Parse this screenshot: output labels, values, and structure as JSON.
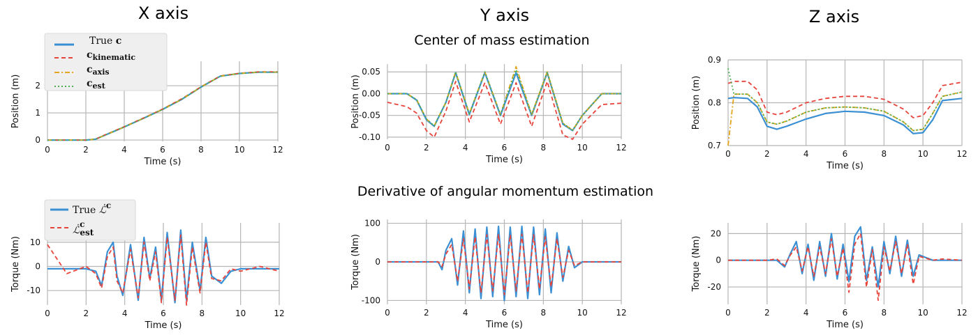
{
  "titles": {
    "col_x": "X axis",
    "col_y": "Y axis",
    "col_z": "Z axis",
    "row_com": "Center of mass estimation",
    "row_dl": "Derivative of angular momentum estimation"
  },
  "colors": {
    "true": "#3b8fd3",
    "kinematic": "#e8433a",
    "axis": "#e2a51c",
    "est": "#4caf50",
    "grid": "#b5b5b5"
  },
  "legends": {
    "com": [
      {
        "label": "True c",
        "color": "#3b8fd3",
        "dash": "solid"
      },
      {
        "label": "c_kinematic",
        "color": "#e8433a",
        "dash": "dashed"
      },
      {
        "label": "c_axis",
        "color": "#e2a51c",
        "dash": "dashdot"
      },
      {
        "label": "c_est",
        "color": "#4caf50",
        "dash": "dotted"
      }
    ],
    "dl": [
      {
        "label": "True L̇c",
        "color": "#3b8fd3",
        "dash": "solid"
      },
      {
        "label": "L̇c_est",
        "color": "#e8433a",
        "dash": "dashed"
      }
    ]
  },
  "chart_data": [
    {
      "id": "com-x",
      "type": "line",
      "xlabel": "Time (s)",
      "ylabel": "Position (m)",
      "xlim": [
        0,
        12
      ],
      "ylim": [
        -0.05,
        2.9
      ],
      "xticks": [
        0,
        2,
        4,
        6,
        8,
        10,
        12
      ],
      "yticks": [
        0,
        1,
        2
      ],
      "x": [
        0,
        1,
        2,
        2.5,
        3,
        3.5,
        4,
        5,
        6,
        7,
        8,
        8.5,
        9,
        10,
        11,
        12
      ],
      "series": [
        {
          "name": "True c",
          "color": "#3b8fd3",
          "dash": "solid",
          "values": [
            0,
            0,
            0,
            0.03,
            0.18,
            0.33,
            0.48,
            0.8,
            1.13,
            1.5,
            1.95,
            2.15,
            2.35,
            2.45,
            2.5,
            2.5
          ]
        },
        {
          "name": "c_kinematic",
          "color": "#e8433a",
          "dash": "dashed",
          "values": [
            0,
            0,
            0,
            0.03,
            0.19,
            0.34,
            0.49,
            0.81,
            1.14,
            1.52,
            1.96,
            2.16,
            2.36,
            2.46,
            2.51,
            2.51
          ]
        },
        {
          "name": "c_axis",
          "color": "#e2a51c",
          "dash": "dashdot",
          "values": [
            0,
            0,
            0,
            0.03,
            0.18,
            0.33,
            0.48,
            0.8,
            1.13,
            1.5,
            1.95,
            2.15,
            2.35,
            2.45,
            2.5,
            2.5
          ]
        },
        {
          "name": "c_est",
          "color": "#4caf50",
          "dash": "dotted",
          "values": [
            0,
            0,
            0,
            0.03,
            0.18,
            0.33,
            0.48,
            0.8,
            1.13,
            1.5,
            1.95,
            2.15,
            2.35,
            2.45,
            2.5,
            2.5
          ]
        }
      ]
    },
    {
      "id": "com-y",
      "type": "line",
      "xlabel": "Time (s)",
      "ylabel": "Position (m)",
      "xlim": [
        0,
        12
      ],
      "ylim": [
        -0.105,
        0.068
      ],
      "xticks": [
        0,
        2,
        4,
        6,
        8,
        10,
        12
      ],
      "yticks": [
        -0.1,
        -0.05,
        0.0,
        0.05
      ],
      "x": [
        0,
        1,
        1.5,
        2,
        2.4,
        3,
        3.5,
        4.2,
        5,
        5.8,
        6.6,
        7.4,
        8.2,
        9,
        9.5,
        10,
        11,
        12
      ],
      "series": [
        {
          "name": "True c",
          "color": "#3b8fd3",
          "dash": "solid",
          "values": [
            0,
            0,
            -0.015,
            -0.06,
            -0.075,
            -0.02,
            0.048,
            -0.048,
            0.048,
            -0.05,
            0.048,
            -0.05,
            0.048,
            -0.07,
            -0.085,
            -0.05,
            0,
            0
          ]
        },
        {
          "name": "c_kinematic",
          "color": "#e8433a",
          "dash": "dashed",
          "values": [
            -0.02,
            -0.03,
            -0.045,
            -0.085,
            -0.1,
            -0.04,
            0.028,
            -0.065,
            0.025,
            -0.07,
            0.025,
            -0.075,
            0.028,
            -0.095,
            -0.105,
            -0.07,
            -0.025,
            -0.022
          ]
        },
        {
          "name": "c_axis",
          "color": "#e2a51c",
          "dash": "dashdot",
          "values": [
            0,
            0,
            -0.014,
            -0.058,
            -0.074,
            -0.02,
            0.05,
            -0.046,
            0.05,
            -0.048,
            0.062,
            -0.048,
            0.05,
            -0.068,
            -0.084,
            -0.05,
            0,
            0
          ]
        },
        {
          "name": "c_est",
          "color": "#4caf50",
          "dash": "dotted",
          "values": [
            0,
            0,
            -0.014,
            -0.058,
            -0.074,
            -0.02,
            0.05,
            -0.046,
            0.05,
            -0.048,
            0.055,
            -0.048,
            0.05,
            -0.068,
            -0.084,
            -0.05,
            0,
            0
          ]
        }
      ]
    },
    {
      "id": "com-z",
      "type": "line",
      "xlabel": "Time (s)",
      "ylabel": "Position (m)",
      "xlim": [
        0,
        12
      ],
      "ylim": [
        0.7,
        0.9
      ],
      "xticks": [
        0,
        2,
        4,
        6,
        8,
        10,
        12
      ],
      "yticks": [
        0.7,
        0.8,
        0.9
      ],
      "x": [
        0,
        0.3,
        1,
        1.5,
        2,
        2.5,
        3,
        4,
        5,
        6,
        7,
        8,
        9,
        9.5,
        10,
        10.5,
        11,
        12
      ],
      "series": [
        {
          "name": "True c",
          "color": "#3b8fd3",
          "dash": "solid",
          "values": [
            0.81,
            0.812,
            0.81,
            0.79,
            0.745,
            0.738,
            0.745,
            0.762,
            0.775,
            0.78,
            0.778,
            0.77,
            0.748,
            0.728,
            0.73,
            0.76,
            0.805,
            0.81
          ]
        },
        {
          "name": "c_kinematic",
          "color": "#e8433a",
          "dash": "dashed",
          "values": [
            0.845,
            0.85,
            0.85,
            0.83,
            0.778,
            0.772,
            0.778,
            0.8,
            0.81,
            0.815,
            0.815,
            0.808,
            0.785,
            0.765,
            0.77,
            0.8,
            0.84,
            0.848
          ]
        },
        {
          "name": "c_axis",
          "color": "#e2a51c",
          "dash": "dashdot",
          "values": [
            0.7,
            0.82,
            0.82,
            0.8,
            0.755,
            0.75,
            0.757,
            0.778,
            0.788,
            0.79,
            0.788,
            0.78,
            0.755,
            0.735,
            0.738,
            0.775,
            0.815,
            0.825
          ]
        },
        {
          "name": "c_est",
          "color": "#4caf50",
          "dash": "dotted",
          "values": [
            0.88,
            0.82,
            0.82,
            0.8,
            0.755,
            0.75,
            0.757,
            0.778,
            0.788,
            0.79,
            0.788,
            0.78,
            0.755,
            0.735,
            0.738,
            0.775,
            0.815,
            0.825
          ]
        }
      ]
    },
    {
      "id": "dl-x",
      "type": "line",
      "xlabel": "Time (s)",
      "ylabel": "Torque (Nm)",
      "xlim": [
        0,
        12
      ],
      "ylim": [
        -16,
        18
      ],
      "xticks": [
        0,
        2,
        4,
        6,
        8,
        10,
        12
      ],
      "yticks": [
        -10,
        0,
        10
      ],
      "x": [
        0,
        1,
        2,
        2.5,
        2.8,
        3.1,
        3.4,
        3.6,
        3.9,
        4.3,
        4.7,
        5,
        5.3,
        5.6,
        5.9,
        6.2,
        6.6,
        6.9,
        7.2,
        7.5,
        7.9,
        8.2,
        8.5,
        9,
        9.5,
        10,
        11,
        12
      ],
      "series": [
        {
          "name": "True L̇c",
          "color": "#3b8fd3",
          "dash": "solid",
          "values": [
            -1,
            -1,
            -1,
            -2,
            -8,
            6,
            10,
            -4,
            -12,
            9,
            -14,
            12,
            -5,
            8,
            -14,
            14,
            -15,
            15,
            -14,
            10,
            -10,
            12,
            -4,
            -7,
            -2,
            -1,
            -1,
            -1
          ]
        },
        {
          "name": "L̇c_est",
          "color": "#e8433a",
          "dash": "dashed",
          "values": [
            9,
            -3,
            0,
            -3,
            -9,
            4,
            8,
            -6,
            -11,
            7,
            -13,
            10,
            -6,
            6,
            -15,
            12,
            -14,
            13,
            -16,
            8,
            -11,
            10,
            -5,
            -6,
            -1,
            -2,
            0,
            -2
          ]
        }
      ]
    },
    {
      "id": "dl-y",
      "type": "line",
      "xlabel": "Time (s)",
      "ylabel": "Torque (Nm)",
      "xlim": [
        0,
        12
      ],
      "ylim": [
        -110,
        110
      ],
      "xticks": [
        0,
        2,
        4,
        6,
        8,
        10,
        12
      ],
      "yticks": [
        -100,
        0,
        100
      ],
      "x": [
        0,
        1,
        2,
        2.6,
        2.8,
        3,
        3.3,
        3.6,
        3.9,
        4.2,
        4.5,
        4.8,
        5.1,
        5.4,
        5.7,
        6,
        6.3,
        6.6,
        6.9,
        7.2,
        7.5,
        7.8,
        8.1,
        8.4,
        8.7,
        9,
        9.3,
        9.6,
        10,
        11,
        12
      ],
      "series": [
        {
          "name": "True L̇c",
          "color": "#3b8fd3",
          "dash": "solid",
          "values": [
            0,
            0,
            0,
            0,
            -20,
            30,
            60,
            -60,
            80,
            -80,
            85,
            -95,
            90,
            -90,
            92,
            -100,
            90,
            -90,
            92,
            -95,
            90,
            -85,
            85,
            -80,
            75,
            -50,
            40,
            -15,
            0,
            0,
            0
          ]
        },
        {
          "name": "L̇c_est",
          "color": "#e8433a",
          "dash": "dashed",
          "values": [
            0,
            0,
            0,
            0,
            -12,
            20,
            45,
            -50,
            60,
            -70,
            65,
            -80,
            70,
            -75,
            72,
            -85,
            70,
            -75,
            72,
            -80,
            70,
            -70,
            65,
            -65,
            60,
            -40,
            30,
            -10,
            0,
            0,
            0
          ]
        }
      ]
    },
    {
      "id": "dl-z",
      "type": "line",
      "xlabel": "Time (s)",
      "ylabel": "Torque (Nm)",
      "xlim": [
        0,
        12
      ],
      "ylim": [
        -33,
        28
      ],
      "xticks": [
        0,
        2,
        4,
        6,
        8,
        10,
        12
      ],
      "yticks": [
        -20,
        0,
        20
      ],
      "x": [
        0,
        1,
        2,
        2.5,
        2.9,
        3.2,
        3.5,
        3.8,
        4.1,
        4.4,
        4.7,
        5,
        5.3,
        5.6,
        5.9,
        6.2,
        6.5,
        6.8,
        7.1,
        7.4,
        7.7,
        8,
        8.3,
        8.6,
        8.9,
        9.2,
        9.5,
        9.8,
        10.5,
        11,
        12
      ],
      "series": [
        {
          "name": "True L̇c",
          "color": "#3b8fd3",
          "dash": "solid",
          "values": [
            0,
            0,
            0,
            0,
            -5,
            5,
            14,
            -10,
            12,
            -15,
            14,
            -12,
            20,
            -14,
            12,
            -16,
            18,
            25,
            -15,
            10,
            -20,
            14,
            -10,
            18,
            -12,
            15,
            -12,
            4,
            0,
            0,
            0
          ]
        },
        {
          "name": "L̇c_est",
          "color": "#e8433a",
          "dash": "dashed",
          "values": [
            0,
            0,
            0,
            1,
            -4,
            4,
            10,
            -8,
            10,
            -12,
            10,
            -10,
            16,
            -12,
            9,
            -24,
            12,
            20,
            -20,
            8,
            -30,
            10,
            -8,
            14,
            -10,
            12,
            -18,
            3,
            0,
            1,
            0
          ]
        }
      ]
    }
  ]
}
